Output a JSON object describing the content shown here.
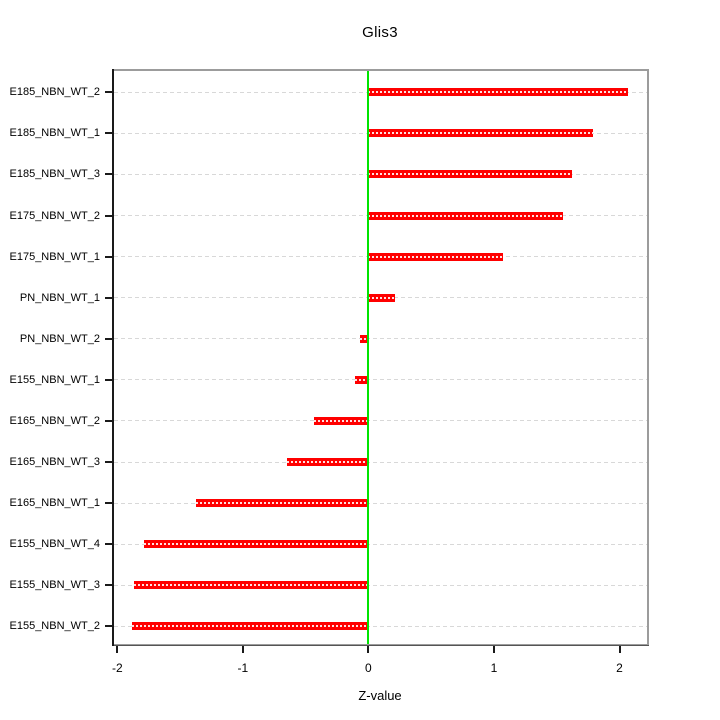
{
  "chart_data": {
    "type": "bar",
    "orientation": "horizontal",
    "title": "Glis3",
    "xlabel": "Z-value",
    "ylabel": "",
    "categories": [
      "E185_NBN_WT_2",
      "E185_NBN_WT_1",
      "E185_NBN_WT_3",
      "E175_NBN_WT_2",
      "E175_NBN_WT_1",
      "PN_NBN_WT_1",
      "PN_NBN_WT_2",
      "E155_NBN_WT_1",
      "E165_NBN_WT_2",
      "E165_NBN_WT_3",
      "E165_NBN_WT_1",
      "E155_NBN_WT_4",
      "E155_NBN_WT_3",
      "E155_NBN_WT_2"
    ],
    "values": [
      2.07,
      1.79,
      1.62,
      1.55,
      1.07,
      0.21,
      -0.07,
      -0.11,
      -0.43,
      -0.65,
      -1.37,
      -1.79,
      -1.87,
      -1.88
    ],
    "x_ticks": [
      -2,
      -1,
      0,
      1,
      2
    ],
    "x_tick_labels": [
      "-2",
      "-1",
      "0",
      "1",
      "2"
    ],
    "xlim": [
      -2.03,
      2.22
    ],
    "zero_reference_line": 0,
    "grid": "dashed horizontal per category",
    "legend": "none",
    "colors": {
      "bar": "#ff0000",
      "bar_center_dash": "#ffffff",
      "zero_line": "#00e400",
      "grid": "#d8d8d8",
      "frame": "#9c9c9c",
      "axis": "#1a1a1a",
      "text": "#000000",
      "background": "#ffffff"
    }
  }
}
